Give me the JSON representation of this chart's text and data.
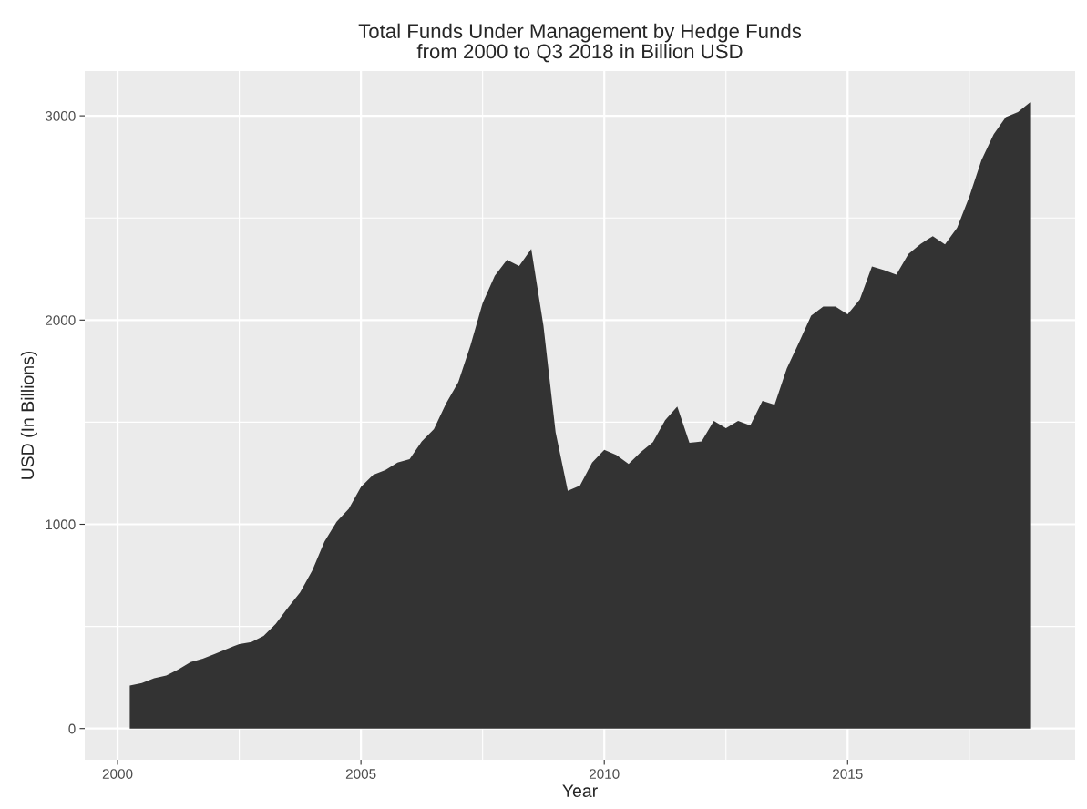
{
  "chart_data": {
    "type": "area",
    "title": "Total Funds Under Management by Hedge Funds\nfrom 2000 to Q3 2018 in Billion USD",
    "xlabel": "Year",
    "ylabel": "USD (In Billions)",
    "x": [
      2000.25,
      2000.5,
      2000.75,
      2001,
      2001.25,
      2001.5,
      2001.75,
      2002,
      2002.25,
      2002.5,
      2002.75,
      2003,
      2003.25,
      2003.5,
      2003.75,
      2004,
      2004.25,
      2004.5,
      2004.75,
      2005,
      2005.25,
      2005.5,
      2005.75,
      2006,
      2006.25,
      2006.5,
      2006.75,
      2007,
      2007.25,
      2007.5,
      2007.75,
      2008,
      2008.25,
      2008.5,
      2008.75,
      2009,
      2009.25,
      2009.5,
      2009.75,
      2010,
      2010.25,
      2010.5,
      2010.75,
      2011,
      2011.25,
      2011.5,
      2011.75,
      2012,
      2012.25,
      2012.5,
      2012.75,
      2013,
      2013.25,
      2013.5,
      2013.75,
      2014,
      2014.25,
      2014.5,
      2014.75,
      2015,
      2015.25,
      2015.5,
      2015.75,
      2016,
      2016.25,
      2016.5,
      2016.75,
      2017,
      2017.25,
      2017.5,
      2017.75,
      2018,
      2018.25,
      2018.5,
      2018.75
    ],
    "series": [
      {
        "color": "#333333",
        "values": [
          211,
          223,
          246,
          260,
          290,
          325,
          342,
          365,
          390,
          414,
          424,
          454,
          513,
          592,
          667,
          774,
          915,
          1012,
          1076,
          1183,
          1242,
          1265,
          1302,
          1319,
          1406,
          1466,
          1592,
          1696,
          1875,
          2083,
          2217,
          2295,
          2265,
          2348,
          1972,
          1451,
          1164,
          1190,
          1302,
          1365,
          1339,
          1295,
          1354,
          1402,
          1510,
          1577,
          1399,
          1406,
          1506,
          1470,
          1506,
          1484,
          1604,
          1585,
          1763,
          1890,
          2021,
          2066,
          2066,
          2028,
          2101,
          2262,
          2244,
          2222,
          2324,
          2373,
          2411,
          2370,
          2452,
          2604,
          2783,
          2909,
          2994,
          3018,
          3066
        ]
      }
    ],
    "xlim": [
      1999.325,
      2019.675
    ],
    "xticks": [
      2000,
      {
        "value": 2002.5,
        "label": null
      },
      2005,
      {
        "value": 2007.5,
        "label": null
      },
      2010,
      {
        "value": 2012.5,
        "label": null
      },
      2015,
      {
        "value": 2017.5,
        "label": null
      }
    ],
    "ylim": [
      -153,
      3219
    ],
    "yticks": [
      0,
      {
        "value": 500,
        "label": null
      },
      1000,
      {
        "value": 1500,
        "label": null
      },
      2000,
      {
        "value": 2500,
        "label": null
      },
      3000
    ],
    "grid": true,
    "legend": false
  }
}
